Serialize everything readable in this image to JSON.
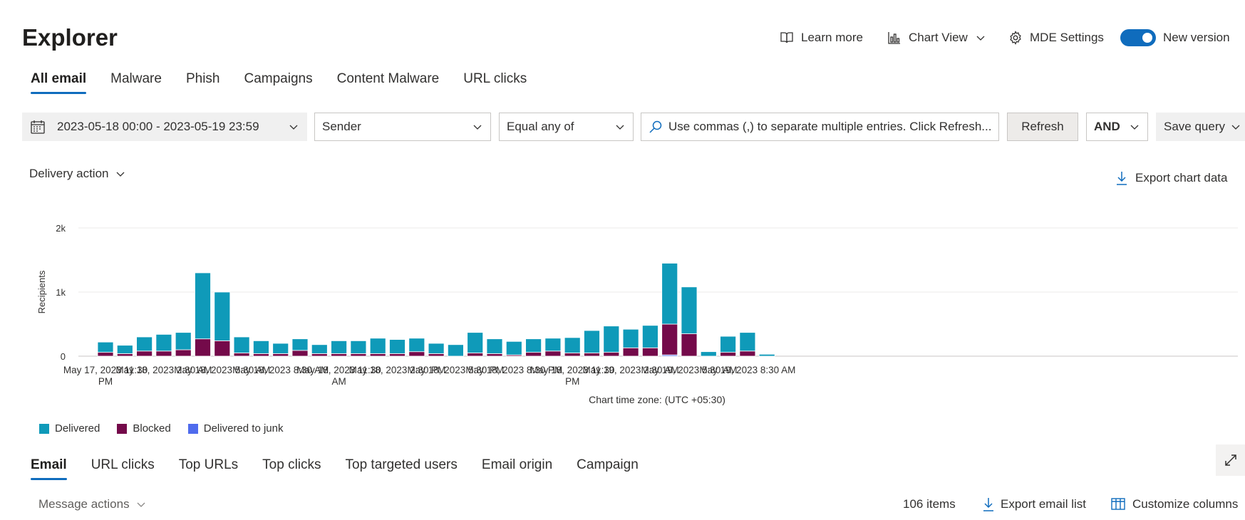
{
  "page": {
    "title": "Explorer"
  },
  "header_actions": {
    "learn_more": "Learn more",
    "chart_view": "Chart View",
    "mde_settings": "MDE Settings",
    "new_version": "New version",
    "new_version_on": true
  },
  "main_tabs": [
    "All email",
    "Malware",
    "Phish",
    "Campaigns",
    "Content Malware",
    "URL clicks"
  ],
  "filters": {
    "date_range": "2023-05-18 00:00 - 2023-05-19 23:59",
    "field": "Sender",
    "operator": "Equal any of",
    "search_placeholder": "Use commas (,) to separate multiple entries. Click Refresh...",
    "refresh": "Refresh",
    "logic": "AND",
    "save_query": "Save query"
  },
  "chart_controls": {
    "group_by": "Delivery action",
    "export_chart": "Export chart data",
    "timezone": "Chart time zone: (UTC +05:30)"
  },
  "chart_data": {
    "type": "bar",
    "stacked": true,
    "ylabel": "Recipients",
    "ylim": [
      0,
      2000
    ],
    "yticks": [
      {
        "value": 0,
        "label": "0"
      },
      {
        "value": 1000,
        "label": "1k"
      },
      {
        "value": 2000,
        "label": "2k"
      }
    ],
    "grid": true,
    "x_labels": [
      {
        "index": 0,
        "lines": [
          "May 17, 2023 11:30",
          "PM"
        ]
      },
      {
        "index": 3,
        "lines": [
          "May 18, 2023 2:30 AM"
        ]
      },
      {
        "index": 6,
        "lines": [
          "May 18, 2023 5:30 AM"
        ]
      },
      {
        "index": 9,
        "lines": [
          "May 18, 2023 8:30 AM"
        ]
      },
      {
        "index": 12,
        "lines": [
          "May 18, 2023 11:30",
          "AM"
        ]
      },
      {
        "index": 15,
        "lines": [
          "May 18, 2023 2:30 PM"
        ]
      },
      {
        "index": 18,
        "lines": [
          "May 18, 2023 5:30 PM"
        ]
      },
      {
        "index": 21,
        "lines": [
          "May 18, 2023 8:30 PM"
        ]
      },
      {
        "index": 24,
        "lines": [
          "May 18, 2023 11:30",
          "PM"
        ]
      },
      {
        "index": 27,
        "lines": [
          "May 19, 2023 2:30 AM"
        ]
      },
      {
        "index": 30,
        "lines": [
          "May 19, 2023 5:30 AM"
        ]
      },
      {
        "index": 33,
        "lines": [
          "May 19, 2023 8:30 AM"
        ]
      }
    ],
    "series": [
      {
        "name": "Delivered",
        "color": "#0f9ab9",
        "values": [
          160,
          130,
          220,
          260,
          270,
          1030,
          760,
          250,
          200,
          160,
          180,
          140,
          200,
          200,
          240,
          220,
          210,
          160,
          180,
          320,
          230,
          210,
          210,
          200,
          240,
          350,
          410,
          290,
          350,
          950,
          730,
          70,
          250,
          290,
          30
        ]
      },
      {
        "name": "Blocked",
        "color": "#740a4a",
        "values": [
          60,
          40,
          80,
          80,
          100,
          270,
          240,
          50,
          40,
          40,
          90,
          40,
          40,
          40,
          40,
          40,
          70,
          40,
          0,
          50,
          40,
          20,
          60,
          80,
          50,
          50,
          60,
          130,
          130,
          480,
          350,
          0,
          60,
          80,
          0
        ]
      },
      {
        "name": "Delivered to junk",
        "color": "#4f6bed",
        "values": [
          0,
          0,
          0,
          0,
          0,
          0,
          0,
          0,
          0,
          0,
          0,
          0,
          0,
          0,
          0,
          0,
          0,
          0,
          0,
          0,
          0,
          0,
          0,
          0,
          0,
          0,
          0,
          0,
          0,
          20,
          0,
          0,
          0,
          0,
          0
        ]
      }
    ]
  },
  "legend": [
    {
      "label": "Delivered",
      "color": "#0f9ab9"
    },
    {
      "label": "Blocked",
      "color": "#740a4a"
    },
    {
      "label": "Delivered to junk",
      "color": "#4f6bed"
    }
  ],
  "result_tabs": [
    "Email",
    "URL clicks",
    "Top URLs",
    "Top clicks",
    "Top targeted users",
    "Email origin",
    "Campaign"
  ],
  "result_toolbar": {
    "message_actions": "Message actions",
    "items_count": "106 items",
    "export_email_list": "Export email list",
    "customize_columns": "Customize columns"
  }
}
